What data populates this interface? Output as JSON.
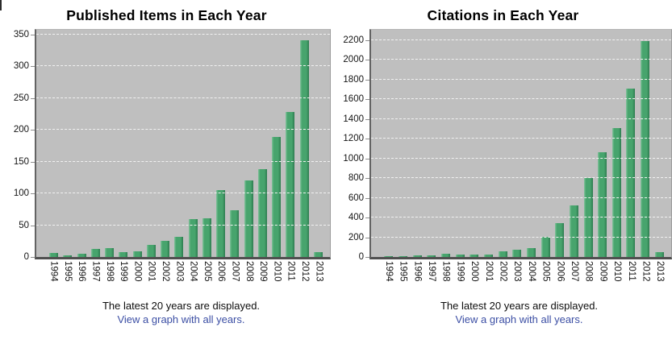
{
  "colors": {
    "bar_main": "#47a46d",
    "bar_edge_light": "#82c39c",
    "bar_edge_dark": "#2e7c50",
    "plot_background": "#bfbfbf",
    "gridline": "#f1f1f1",
    "link": "#3b4ea4",
    "text": "#141414",
    "title": "#000000"
  },
  "panels": [
    {
      "footer_note": "The latest 20 years are displayed.",
      "footer_link": "View a graph with all years."
    },
    {
      "footer_note": "The latest 20 years are displayed.",
      "footer_link": "View a graph with all years."
    }
  ],
  "chart_data": [
    {
      "type": "bar",
      "title": "Published Items in Each Year",
      "categories": [
        "1994",
        "1995",
        "1996",
        "1997",
        "1998",
        "1999",
        "2000",
        "2001",
        "2002",
        "2003",
        "2004",
        "2005",
        "2006",
        "2007",
        "2008",
        "2009",
        "2010",
        "2011",
        "2012",
        "2013"
      ],
      "values": [
        6,
        3,
        5,
        13,
        14,
        7,
        9,
        19,
        25,
        32,
        59,
        61,
        105,
        73,
        120,
        138,
        189,
        228,
        341,
        8
      ],
      "xlabel": "",
      "ylabel": "",
      "ylim": [
        0,
        350
      ],
      "ytick_step": 50,
      "grid": true,
      "legend": false,
      "xlabel_rotation_deg": 90
    },
    {
      "type": "bar",
      "title": "Citations in Each Year",
      "categories": [
        "1994",
        "1995",
        "1996",
        "1997",
        "1998",
        "1999",
        "2000",
        "2001",
        "2002",
        "2003",
        "2004",
        "2005",
        "2006",
        "2007",
        "2008",
        "2009",
        "2010",
        "2011",
        "2012",
        "2013"
      ],
      "values": [
        2,
        8,
        15,
        20,
        30,
        28,
        28,
        25,
        60,
        70,
        88,
        204,
        340,
        520,
        805,
        1060,
        1310,
        1710,
        2190,
        50
      ],
      "xlabel": "",
      "ylabel": "",
      "ylim": [
        0,
        2200
      ],
      "ytick_step": 200,
      "grid": true,
      "legend": false,
      "xlabel_rotation_deg": 90
    }
  ]
}
